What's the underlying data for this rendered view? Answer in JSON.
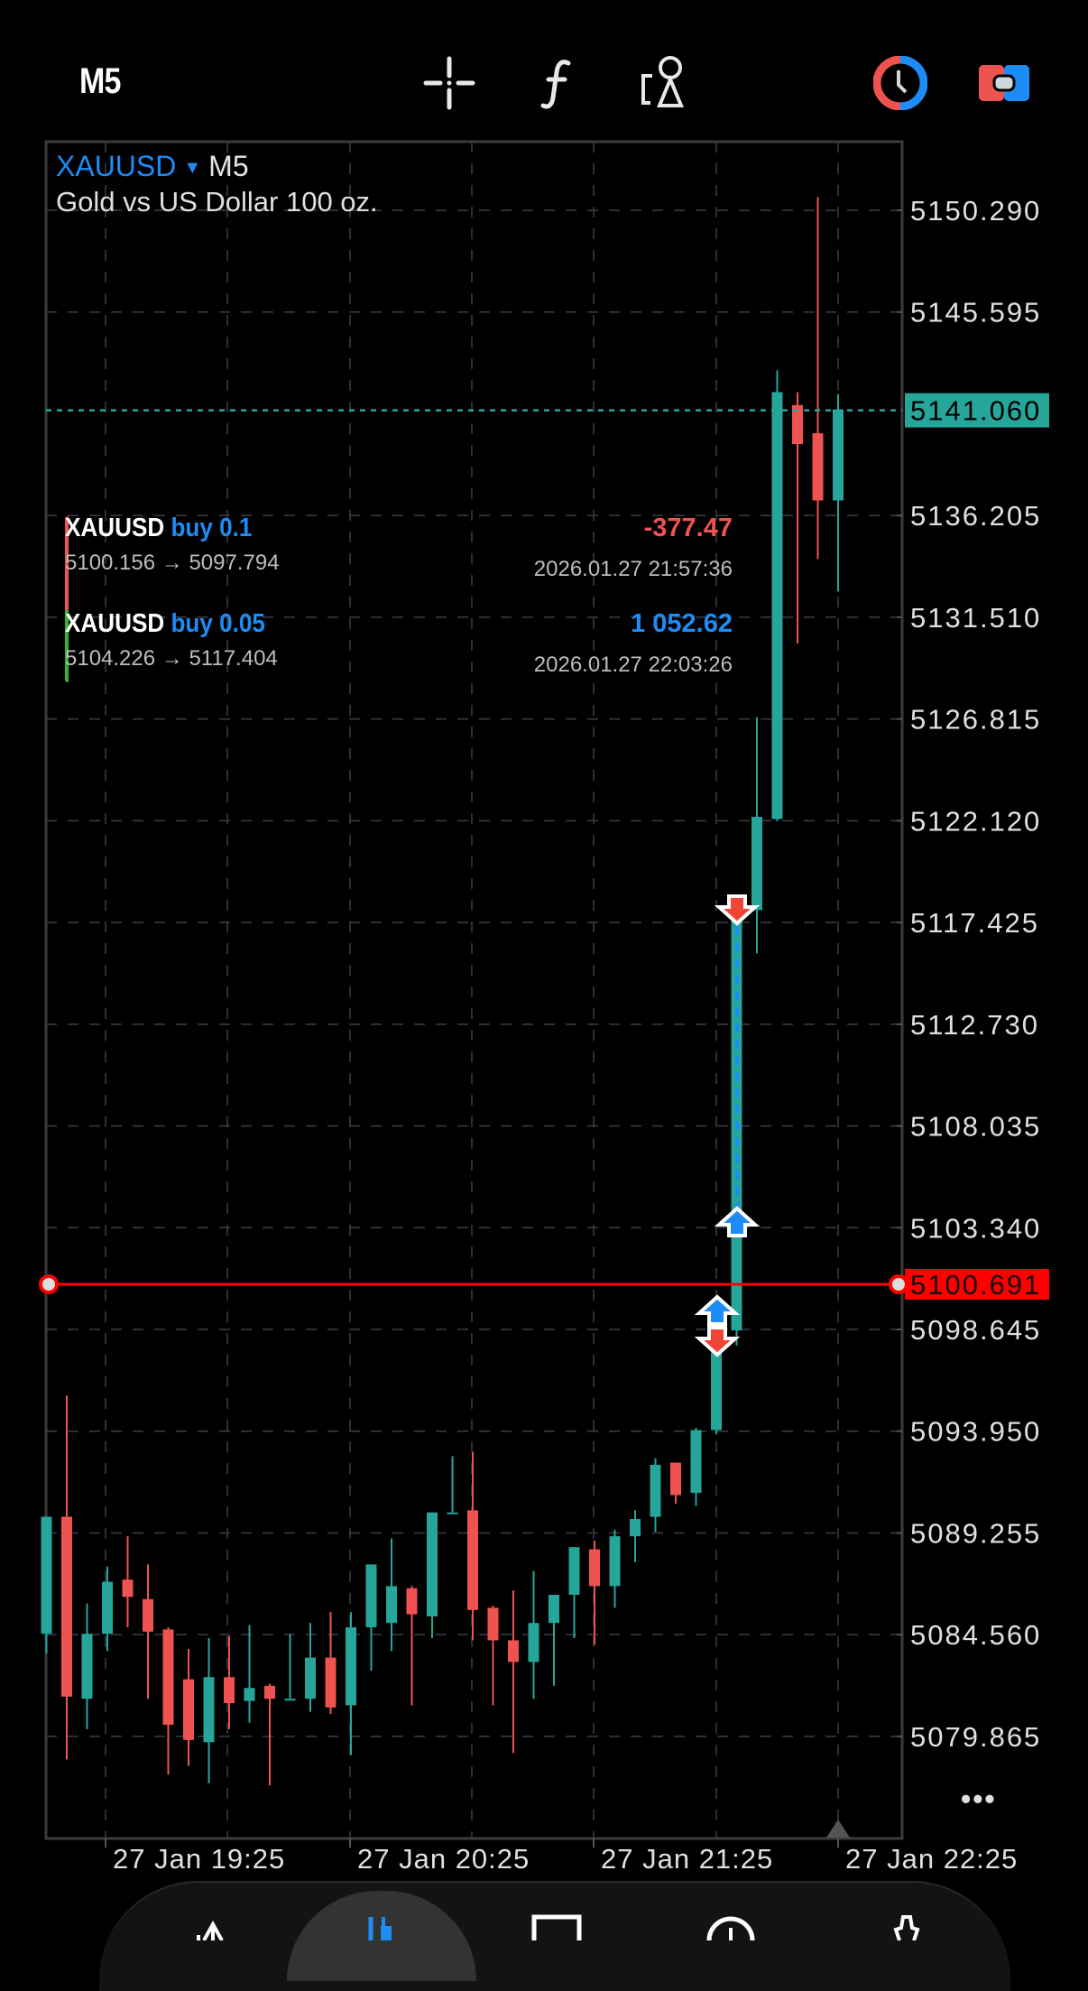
{
  "toolbar": {
    "timeframe": "M5",
    "icons": [
      "crosshair-icon",
      "function-icon",
      "objects-icon",
      "clock-trading-icon",
      "toggle-trade-icon"
    ]
  },
  "chart": {
    "symbol": "XAUUSD",
    "period": "M5",
    "description": "Gold vs US Dollar 100 oz.",
    "colors": {
      "bull": "#26a69a",
      "bear": "#ef5350",
      "grid": "#3a3f4a",
      "accent": "#1e8cf5",
      "bid_line": "#26a69a",
      "position_line": "#ff0000"
    },
    "price_labels": [
      "5150.290",
      "5145.595",
      "5141.060",
      "5136.205",
      "5131.510",
      "5126.815",
      "5122.120",
      "5117.425",
      "5112.730",
      "5108.035",
      "5103.340",
      "5100.691",
      "5098.645",
      "5093.950",
      "5089.255",
      "5084.560",
      "5079.865"
    ],
    "current_price": "5141.060",
    "position_price": "5100.691",
    "time_labels": [
      "27 Jan 19:25",
      "27 Jan 20:25",
      "27 Jan 21:25",
      "27 Jan 22:25"
    ],
    "more_label": "•••"
  },
  "trades": [
    {
      "symbol": "XAUUSD",
      "side": "buy 0.1",
      "pnl": "-377.47",
      "route": "5100.156 → 5097.794",
      "time": "2026.01.27 21:57:36",
      "pnl_color": "#ef5350",
      "bar_color": "#ef5350"
    },
    {
      "symbol": "XAUUSD",
      "side": "buy 0.05",
      "pnl": "1 052.62",
      "route": "5104.226 → 5117.404",
      "time": "2026.01.27 22:03:26",
      "pnl_color": "#1e8cf5",
      "bar_color": "#2eb82e"
    }
  ],
  "bottom_nav": {
    "items": [
      "quotes-icon",
      "chart-icon",
      "trade-icon",
      "history-icon",
      "settings-icon"
    ],
    "active": 1
  },
  "chart_data": {
    "type": "candlestick",
    "title": "XAUUSD M5 — Gold vs US Dollar 100 oz.",
    "ylim": [
      5077.5,
      5153.0
    ],
    "x_ticks": [
      "27 Jan 19:25",
      "27 Jan 20:25",
      "27 Jan 21:25",
      "27 Jan 22:25"
    ],
    "candles": [
      {
        "o": 5084.6,
        "h": 5090.0,
        "l": 5083.7,
        "c": 5090.0
      },
      {
        "o": 5090.0,
        "h": 5095.6,
        "l": 5078.8,
        "c": 5081.7
      },
      {
        "o": 5081.6,
        "h": 5086.0,
        "l": 5080.2,
        "c": 5084.6
      },
      {
        "o": 5084.6,
        "h": 5087.7,
        "l": 5083.8,
        "c": 5087.0
      },
      {
        "o": 5087.1,
        "h": 5089.1,
        "l": 5084.9,
        "c": 5086.3
      },
      {
        "o": 5086.2,
        "h": 5087.8,
        "l": 5081.6,
        "c": 5084.7
      },
      {
        "o": 5084.8,
        "h": 5084.9,
        "l": 5078.1,
        "c": 5080.4
      },
      {
        "o": 5082.5,
        "h": 5083.9,
        "l": 5078.5,
        "c": 5079.7
      },
      {
        "o": 5079.6,
        "h": 5084.4,
        "l": 5077.7,
        "c": 5082.6
      },
      {
        "o": 5082.6,
        "h": 5084.5,
        "l": 5080.2,
        "c": 5081.4
      },
      {
        "o": 5081.5,
        "h": 5085.0,
        "l": 5080.5,
        "c": 5082.1
      },
      {
        "o": 5082.2,
        "h": 5082.3,
        "l": 5077.6,
        "c": 5081.6
      },
      {
        "o": 5081.6,
        "h": 5084.6,
        "l": 5081.6,
        "c": 5081.6
      },
      {
        "o": 5081.6,
        "h": 5085.1,
        "l": 5081.0,
        "c": 5083.5
      },
      {
        "o": 5083.5,
        "h": 5085.6,
        "l": 5080.9,
        "c": 5081.2
      },
      {
        "o": 5081.3,
        "h": 5085.6,
        "l": 5079.0,
        "c": 5084.9
      },
      {
        "o": 5084.9,
        "h": 5086.6,
        "l": 5082.9,
        "c": 5087.8
      },
      {
        "o": 5085.1,
        "h": 5089.0,
        "l": 5083.8,
        "c": 5086.8
      },
      {
        "o": 5086.7,
        "h": 5086.8,
        "l": 5081.3,
        "c": 5085.5
      },
      {
        "o": 5085.4,
        "h": 5089.0,
        "l": 5084.4,
        "c": 5090.2
      },
      {
        "o": 5090.2,
        "h": 5092.8,
        "l": 5090.2,
        "c": 5090.2
      },
      {
        "o": 5090.3,
        "h": 5093.0,
        "l": 5084.3,
        "c": 5085.7
      },
      {
        "o": 5085.8,
        "h": 5085.9,
        "l": 5081.3,
        "c": 5084.3
      },
      {
        "o": 5084.3,
        "h": 5086.6,
        "l": 5079.1,
        "c": 5083.3
      },
      {
        "o": 5083.3,
        "h": 5087.5,
        "l": 5081.6,
        "c": 5085.1
      },
      {
        "o": 5085.1,
        "h": 5086.2,
        "l": 5082.2,
        "c": 5086.4
      },
      {
        "o": 5086.4,
        "h": 5088.3,
        "l": 5084.4,
        "c": 5088.6
      },
      {
        "o": 5088.5,
        "h": 5088.9,
        "l": 5084.1,
        "c": 5086.8
      },
      {
        "o": 5086.8,
        "h": 5089.4,
        "l": 5085.8,
        "c": 5089.1
      },
      {
        "o": 5089.1,
        "h": 5090.3,
        "l": 5087.9,
        "c": 5089.9
      },
      {
        "o": 5090.0,
        "h": 5092.7,
        "l": 5089.3,
        "c": 5092.4
      },
      {
        "o": 5092.5,
        "h": 5092.4,
        "l": 5090.6,
        "c": 5091.0
      },
      {
        "o": 5091.1,
        "h": 5094.1,
        "l": 5090.5,
        "c": 5094.0
      },
      {
        "o": 5094.0,
        "h": 5098.0,
        "l": 5093.8,
        "c": 5097.9
      },
      {
        "o": 5098.6,
        "h": 5118.2,
        "l": 5097.9,
        "c": 5118.1
      },
      {
        "o": 5118.0,
        "h": 5126.9,
        "l": 5116.0,
        "c": 5122.3
      },
      {
        "o": 5122.2,
        "h": 5142.9,
        "l": 5122.1,
        "c": 5141.9
      },
      {
        "o": 5141.3,
        "h": 5141.9,
        "l": 5130.3,
        "c": 5139.5
      },
      {
        "o": 5140.0,
        "h": 5150.9,
        "l": 5134.2,
        "c": 5136.9
      },
      {
        "o": 5136.9,
        "h": 5141.8,
        "l": 5132.7,
        "c": 5141.1
      }
    ],
    "hlines": [
      {
        "price": 5141.06,
        "label": "5141.060",
        "style": "dotted",
        "color": "#26a69a"
      },
      {
        "price": 5100.691,
        "label": "5100.691",
        "style": "solid",
        "color": "#ff0000"
      }
    ],
    "markers": [
      {
        "type": "buy",
        "price": 5103.34
      },
      {
        "type": "buy",
        "price": 5100.156
      },
      {
        "type": "sell",
        "price": 5097.794
      },
      {
        "type": "sell",
        "price": 5117.404
      }
    ]
  }
}
